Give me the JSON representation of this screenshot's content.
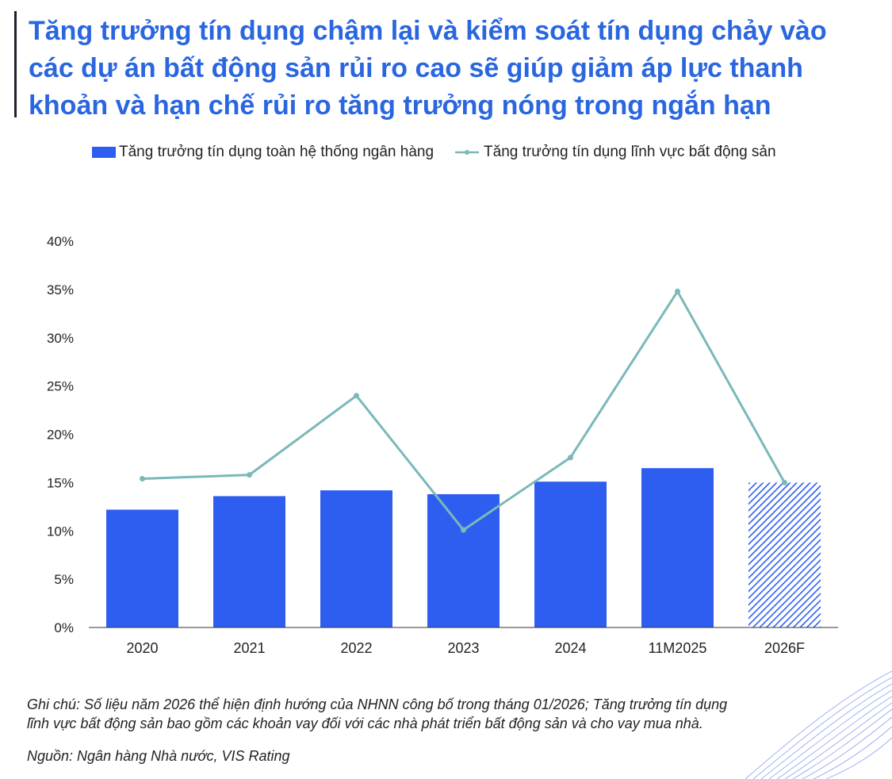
{
  "title_lines": [
    "Tăng trưởng tín dụng chậm lại và kiểm soát tín dụng chảy vào",
    "các dự án bất động sản rủi ro cao sẽ giúp giảm áp lực thanh",
    "khoản và hạn chế rủi ro tăng trưởng nóng trong ngắn hạn"
  ],
  "chart_data": {
    "type": "bar",
    "categories": [
      "2020",
      "2021",
      "2022",
      "2023",
      "2024",
      "11M2025",
      "2026F"
    ],
    "series": [
      {
        "name": "Tăng trưởng tín dụng toàn hệ thống ngân hàng",
        "type": "bar",
        "values": [
          12.2,
          13.6,
          14.2,
          13.8,
          15.1,
          16.5,
          15.0
        ],
        "color": "#2e5ef0",
        "forecast_index": 6
      },
      {
        "name": "Tăng trưởng tín dụng lĩnh vực bất động sản",
        "type": "line",
        "values": [
          15.4,
          15.8,
          24.0,
          10.1,
          17.6,
          34.8,
          15.0
        ],
        "color": "#7bb8b8"
      }
    ],
    "y_ticks": [
      "0%",
      "5%",
      "10%",
      "15%",
      "20%",
      "25%",
      "30%",
      "35%",
      "40%"
    ],
    "ylim": [
      0,
      40
    ],
    "grid": false,
    "legend_position": "top"
  },
  "note_lines": [
    "Ghi chú: Số liệu năm 2026 thể hiện định hướng của NHNN công bố trong tháng 01/2026; Tăng trưởng tín dụng",
    "lĩnh vực bất động sản bao gồm các khoản vay đối với các nhà phát triển bất động sản và cho vay mua nhà."
  ],
  "source": "Nguồn: Ngân hàng Nhà nước, VIS Rating"
}
